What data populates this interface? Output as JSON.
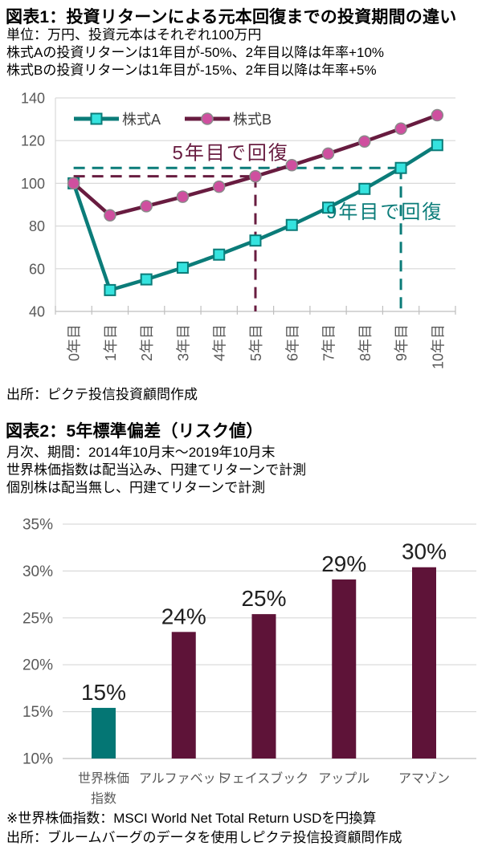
{
  "figure1": {
    "title": "図表1：投資リターンによる元本回復までの投資期間の違い",
    "subtitle_lines": [
      "単位：万円、投資元本はそれぞれ100万円",
      "株式Aの投資リターンは1年目が-50%、2年目以降は年率+10%",
      "株式Bの投資リターンは1年目が-15%、2年目以降は年率+5%"
    ],
    "source": "出所：ピクテ投信投資顧問作成"
  },
  "figure2": {
    "title": "図表2：5年標準偏差（リスク値）",
    "subtitle_lines": [
      "月次、期間：2014年10月末～2019年10月末",
      "世界株価指数は配当込み、円建てリターンで計測",
      "個別株は配当無し、円建てリターンで計測"
    ],
    "footnote": "※世界株価指数：MSCI World Net Total Return USDを円換算",
    "source": "出所：ブルームバーグのデータを使用しピクテ投信投資顧問作成"
  },
  "colors": {
    "teal": "#0b7c79",
    "teal_bar": "#047674",
    "cyan_marker": "#35e3df",
    "maroon": "#681c40",
    "maroon_bar": "#5e1338",
    "pink_marker": "#cf4f9f",
    "grid": "#d9d9d9",
    "axis_line": "#bfbfbf",
    "tick_label": "#595959",
    "legend_text": "#404040",
    "value_label": "#1f1f1f"
  },
  "chart_data": [
    {
      "type": "line",
      "title": "図表1：投資リターンによる元本回復までの投資期間の違い",
      "unit": "万円",
      "categories": [
        "0年目",
        "1年目",
        "2年目",
        "3年目",
        "4年目",
        "5年目",
        "6年目",
        "7年目",
        "8年目",
        "9年目",
        "10年目"
      ],
      "ylim": [
        40,
        140
      ],
      "yticks": [
        40,
        60,
        80,
        100,
        120,
        140
      ],
      "grid": "horizontal",
      "legend_position": "top-left-inside",
      "series": [
        {
          "name": "株式A",
          "color": "#0b7c79",
          "marker": "square",
          "marker_fill": "#35e3df",
          "values": [
            100,
            50,
            55,
            60.5,
            66.6,
            73.2,
            80.5,
            88.6,
            97.4,
            107.2,
            117.9
          ]
        },
        {
          "name": "株式B",
          "color": "#681c40",
          "marker": "circle",
          "marker_fill": "#cf4f9f",
          "values": [
            100,
            85,
            89.3,
            93.7,
            98.4,
            103.3,
            108.5,
            113.9,
            119.6,
            125.6,
            131.9
          ]
        }
      ],
      "guides": [
        {
          "name": "stock-b-recovery",
          "color": "#681c40",
          "level": 103.3,
          "from_year": 0,
          "to_year": 5
        },
        {
          "name": "stock-a-recovery",
          "color": "#0b7c79",
          "level": 107.2,
          "from_year": 0,
          "to_year": 9
        }
      ],
      "annotations": [
        {
          "text": "5年目で回復",
          "color": "#681c40",
          "year_x": 4.82,
          "value_y": 111.2
        },
        {
          "text": "9年目で回復",
          "color": "#0b7c79",
          "year_x": 9.05,
          "value_y": 83.6
        }
      ]
    },
    {
      "type": "bar",
      "title": "図表2：5年標準偏差（リスク値）",
      "categories": [
        "世界株価\n指数",
        "アルファベット",
        "フェイスブック",
        "アップル",
        "アマゾン"
      ],
      "values": [
        15.4,
        23.5,
        25.4,
        29.1,
        30.4
      ],
      "labels": [
        "15%",
        "24%",
        "25%",
        "29%",
        "30%"
      ],
      "bar_colors": [
        "#047674",
        "#5e1338",
        "#5e1338",
        "#5e1338",
        "#5e1338"
      ],
      "ylim": [
        10,
        35
      ],
      "yticks": [
        10,
        15,
        20,
        25,
        30,
        35
      ],
      "ytick_labels": [
        "10%",
        "15%",
        "20%",
        "25%",
        "30%",
        "35%"
      ],
      "grid": "horizontal"
    }
  ]
}
